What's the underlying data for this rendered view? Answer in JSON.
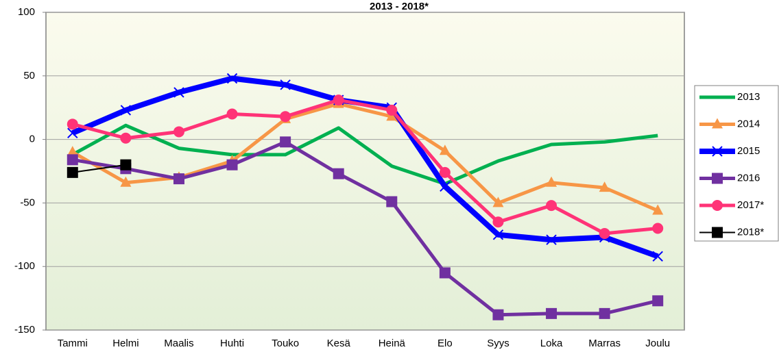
{
  "chart_data": {
    "type": "line",
    "title": "2013 - 2018*",
    "categories": [
      "Tammi",
      "Helmi",
      "Maalis",
      "Huhti",
      "Touko",
      "Kesä",
      "Heinä",
      "Elo",
      "Syys",
      "Loka",
      "Marras",
      "Joulu"
    ],
    "ylim": [
      -150,
      100
    ],
    "yticks": [
      -150,
      -100,
      -50,
      0,
      50,
      100
    ],
    "grid": true,
    "series": [
      {
        "name": "2013",
        "color": "#00b050",
        "marker": "none",
        "line_width": 5,
        "values": [
          -12,
          11,
          -7,
          -12,
          -12,
          9,
          -21,
          -35,
          -17,
          -4,
          -2,
          3
        ]
      },
      {
        "name": "2014",
        "color": "#f79646",
        "marker": "triangle",
        "line_width": 5,
        "values": [
          -10,
          -34,
          -30,
          -17,
          16,
          28,
          18,
          -9,
          -50,
          -34,
          -38,
          -56
        ]
      },
      {
        "name": "2015",
        "color": "#0000ff",
        "marker": "x",
        "line_width": 8,
        "values": [
          5,
          23,
          37,
          48,
          43,
          31,
          25,
          -37,
          -75,
          -79,
          -77,
          -92
        ]
      },
      {
        "name": "2016",
        "color": "#7030a0",
        "marker": "square",
        "line_width": 5,
        "values": [
          -16,
          -23,
          -31,
          -20,
          -2,
          -27,
          -49,
          -105,
          -138,
          -137,
          -137,
          -127
        ]
      },
      {
        "name": "2017*",
        "color": "#ff3377",
        "marker": "circle",
        "line_width": 5,
        "values": [
          12,
          1,
          6,
          20,
          18,
          31,
          23,
          -26,
          -65,
          -52,
          -74,
          -70
        ]
      },
      {
        "name": "2018*",
        "color": "#000000",
        "marker": "square",
        "line_width": 2,
        "values": [
          -26,
          -20,
          null,
          null,
          null,
          null,
          null,
          null,
          null,
          null,
          null,
          null
        ]
      }
    ]
  }
}
